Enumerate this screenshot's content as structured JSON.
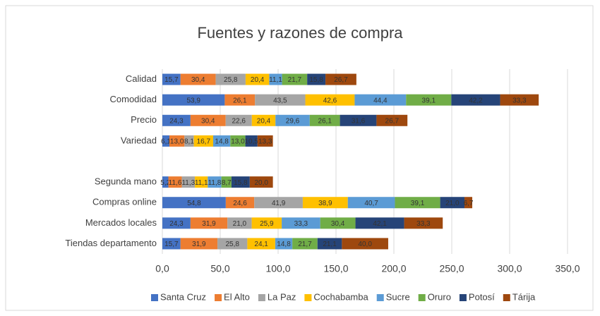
{
  "chart_data": {
    "type": "stacked-bar-horizontal",
    "title": "Fuentes y razones de compra",
    "categories": [
      "Calidad",
      "Comodidad",
      "Precio",
      "Variedad",
      null,
      "Segunda mano",
      "Compras online",
      "Mercados locales",
      "Tiendas departamento"
    ],
    "series": [
      {
        "name": "Santa Cruz",
        "color": "#4472c4",
        "values": [
          15.7,
          53.9,
          24.3,
          6.1,
          null,
          5.2,
          54.8,
          24.3,
          15.7
        ],
        "value_labels": [
          "15,7",
          "53,9",
          "24,3",
          "6,1",
          null,
          "5,2",
          "54,8",
          "24,3",
          "15,7"
        ]
      },
      {
        "name": "El Alto",
        "color": "#ed7d31",
        "values": [
          30.4,
          26.1,
          30.4,
          13.0,
          null,
          11.6,
          24.6,
          31.9,
          31.9
        ],
        "value_labels": [
          "30,4",
          "26,1",
          "30,4",
          "13,0",
          null,
          "11,6",
          "24,6",
          "31,9",
          "31,9"
        ]
      },
      {
        "name": "La Paz",
        "color": "#a5a5a5",
        "values": [
          25.8,
          43.5,
          22.6,
          8.1,
          null,
          11.3,
          41.9,
          21.0,
          25.8
        ],
        "value_labels": [
          "25,8",
          "43,5",
          "22,6",
          "8,1",
          null,
          "11,3",
          "41,9",
          "21,0",
          "25,8"
        ]
      },
      {
        "name": "Cochabamba",
        "color": "#ffc000",
        "values": [
          20.4,
          42.6,
          20.4,
          16.7,
          null,
          11.1,
          38.9,
          25.9,
          24.1
        ],
        "value_labels": [
          "20,4",
          "42,6",
          "20,4",
          "16,7",
          null,
          "11,1",
          "38,9",
          "25,9",
          "24,1"
        ]
      },
      {
        "name": "Sucre",
        "color": "#5b9bd5",
        "values": [
          11.1,
          44.4,
          29.6,
          14.8,
          null,
          11.8,
          40.7,
          33.3,
          14.8
        ],
        "value_labels": [
          "11,1",
          "44,4",
          "29,6",
          "14,8",
          null,
          "11,8",
          "40,7",
          "33,3",
          "14,8"
        ]
      },
      {
        "name": "Oruro",
        "color": "#70ad47",
        "values": [
          21.7,
          39.1,
          26.1,
          13.0,
          null,
          8.7,
          39.1,
          30.4,
          21.7
        ],
        "value_labels": [
          "21,7",
          "39,1",
          "26,1",
          "13,0",
          null,
          "8,7",
          "39,1",
          "30,4",
          "21,7"
        ]
      },
      {
        "name": "Potosí",
        "color": "#264478",
        "values": [
          15.8,
          42.2,
          31.6,
          10.5,
          null,
          15.8,
          21.0,
          42.1,
          21.1
        ],
        "value_labels": [
          "15,8",
          "42,2",
          "31,6",
          "10,5",
          null,
          "15,8",
          "21,0",
          "42,1",
          "21,1"
        ]
      },
      {
        "name": "Tárija",
        "color": "#9e480e",
        "values": [
          26.7,
          33.3,
          26.7,
          13.3,
          null,
          20.0,
          6.7,
          33.3,
          40.0
        ],
        "value_labels": [
          "26,7",
          "33,3",
          "26,7",
          "13,3",
          null,
          "20,0",
          "6,7",
          "33,3",
          "40,0"
        ]
      }
    ],
    "xlim": [
      0,
      350
    ],
    "xticks": [
      {
        "value": 0,
        "label": "0,0"
      },
      {
        "value": 50,
        "label": "50,0"
      },
      {
        "value": 100,
        "label": "100,0"
      },
      {
        "value": 150,
        "label": "150,0"
      },
      {
        "value": 200,
        "label": "200,0"
      },
      {
        "value": 250,
        "label": "250,0"
      },
      {
        "value": 300,
        "label": "300,0"
      },
      {
        "value": 350,
        "label": "350,0"
      }
    ],
    "grid": true,
    "legend": "bottom"
  }
}
